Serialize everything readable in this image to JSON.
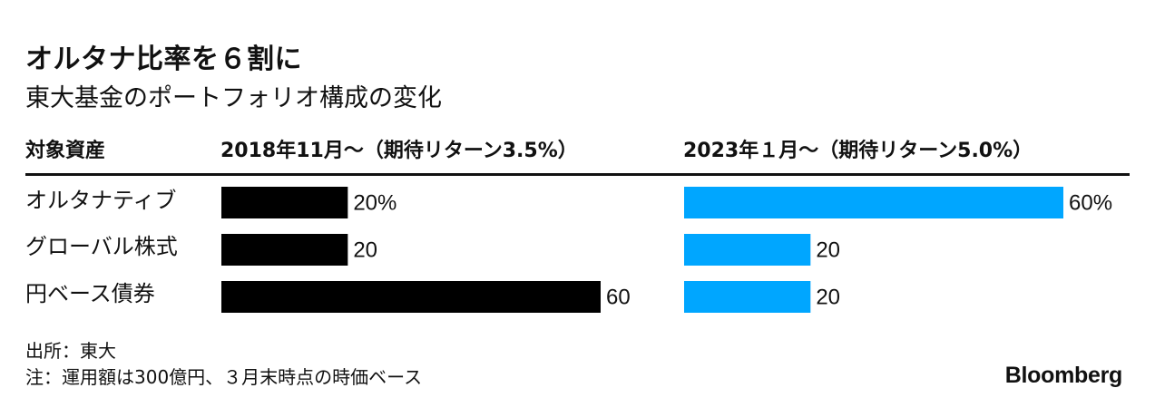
{
  "title": "オルタナ比率を６割に",
  "subtitle": "東大基金のポートフォリオ構成の変化",
  "headers": {
    "category": "対象資産",
    "series1": "2018年11月～（期待リターン3.5%）",
    "series2": "2023年１月～（期待リターン5.0%）"
  },
  "chart_data": {
    "type": "bar",
    "orientation": "horizontal",
    "categories": [
      "オルタナティブ",
      "グローバル株式",
      "円ベース債券"
    ],
    "series": [
      {
        "name": "2018年11月～（期待リターン3.5%）",
        "values": [
          20,
          20,
          60
        ],
        "labels": [
          "20%",
          "20",
          "60"
        ],
        "color": "#000000"
      },
      {
        "name": "2023年１月～（期待リターン5.0%）",
        "values": [
          60,
          20,
          20
        ],
        "labels": [
          "60%",
          "20",
          "20"
        ],
        "color": "#00a6ff"
      }
    ],
    "unit": "%",
    "xlim": [
      0,
      60
    ],
    "grid": false,
    "legend": "none"
  },
  "notes": {
    "source": "出所：東大",
    "note": "注：運用額は300億円、３月末時点の時価ベース"
  },
  "brand": "Bloomberg"
}
